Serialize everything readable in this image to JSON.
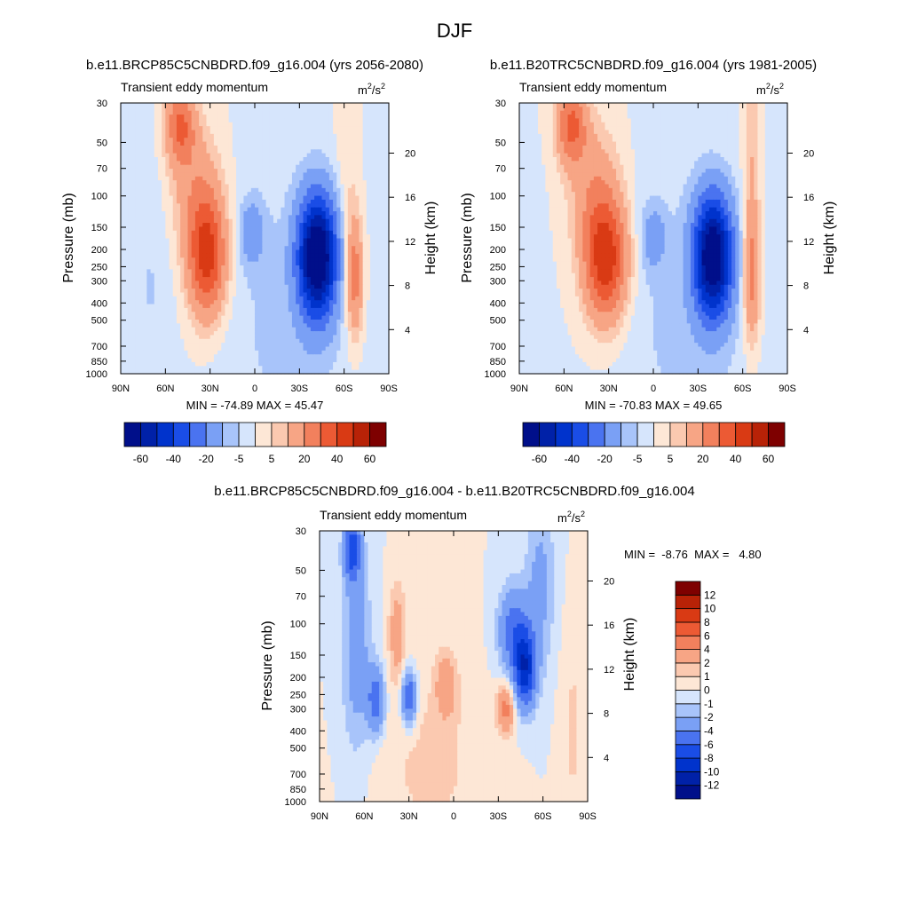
{
  "figure_title": "DJF",
  "chart_data": [
    {
      "type": "heatmap",
      "title": "b.e11.BRCP85C5CNBDRD.f09_g16.004 (yrs 2056-2080)",
      "subtitle_left": "Transient eddy momentum",
      "units": "m²/s²",
      "units_base": "m",
      "units_exp1": "2",
      "units_sep": "/s",
      "units_exp2": "2",
      "ylabel": "Pressure (mb)",
      "ylabel_right": "Height (km)",
      "x_ticks": [
        "90N",
        "60N",
        "30N",
        "0",
        "30S",
        "60S",
        "90S"
      ],
      "y_ticks": [
        "30",
        "50",
        "70",
        "100",
        "150",
        "200",
        "250",
        "300",
        "400",
        "500",
        "700",
        "850",
        "1000"
      ],
      "height_ticks": [
        "20",
        "16",
        "12",
        "8",
        "4"
      ],
      "xlim": [
        90,
        -90
      ],
      "ylim": [
        1000,
        30
      ],
      "stats": "MIN = -74.89  MAX = 45.47",
      "min": -74.89,
      "max": 45.47,
      "colorbar_levels": [
        -70,
        -60,
        -50,
        -40,
        -30,
        -20,
        -10,
        -5,
        0,
        5,
        10,
        20,
        30,
        40,
        50,
        60,
        70
      ],
      "colorbar_tick_labels": [
        "-60",
        "-40",
        "-20",
        "-5",
        "5",
        "20",
        "40",
        "60"
      ],
      "features": [
        {
          "lat": 32,
          "p": 220,
          "amp": 45,
          "wlat": 9,
          "wz": 0.55
        },
        {
          "lat": 50,
          "p": 40,
          "amp": 30,
          "wlat": 7,
          "wz": 0.35
        },
        {
          "lat": 40,
          "p": 90,
          "amp": 14,
          "wlat": 12,
          "wz": 0.6
        },
        {
          "lat": -42,
          "p": 220,
          "amp": -75,
          "wlat": 9,
          "wz": 0.55
        },
        {
          "lat": 2,
          "p": 160,
          "amp": -14,
          "wlat": 6,
          "wz": 0.3
        },
        {
          "lat": -67,
          "p": 280,
          "amp": 28,
          "wlat": 4,
          "wz": 0.55
        },
        {
          "lat": -62,
          "p": 60,
          "amp": 6,
          "wlat": 5,
          "wz": 0.9
        },
        {
          "lat": -20,
          "p": 500,
          "amp": -6,
          "wlat": 35,
          "wz": 1.5
        },
        {
          "lat": 70,
          "p": 300,
          "amp": -5,
          "wlat": 10,
          "wz": 1.2
        }
      ]
    },
    {
      "type": "heatmap",
      "title": "b.e11.B20TRC5CNBDRD.f09_g16.004 (yrs 1981-2005)",
      "subtitle_left": "Transient eddy momentum",
      "units": "m²/s²",
      "units_base": "m",
      "units_exp1": "2",
      "units_sep": "/s",
      "units_exp2": "2",
      "ylabel": "Pressure (mb)",
      "ylabel_right": "Height (km)",
      "x_ticks": [
        "90N",
        "60N",
        "30N",
        "0",
        "30S",
        "60S",
        "90S"
      ],
      "y_ticks": [
        "30",
        "50",
        "70",
        "100",
        "150",
        "200",
        "250",
        "300",
        "400",
        "500",
        "700",
        "850",
        "1000"
      ],
      "height_ticks": [
        "20",
        "16",
        "12",
        "8",
        "4"
      ],
      "xlim": [
        90,
        -90
      ],
      "ylim": [
        1000,
        30
      ],
      "stats": "MIN = -70.83  MAX = 49.65",
      "min": -70.83,
      "max": 49.65,
      "colorbar_levels": [
        -70,
        -60,
        -50,
        -40,
        -30,
        -20,
        -10,
        -5,
        0,
        5,
        10,
        20,
        30,
        40,
        50,
        60,
        70
      ],
      "colorbar_tick_labels": [
        "-60",
        "-40",
        "-20",
        "-5",
        "5",
        "20",
        "40",
        "60"
      ],
      "features": [
        {
          "lat": 32,
          "p": 230,
          "amp": 48,
          "wlat": 10,
          "wz": 0.55
        },
        {
          "lat": 55,
          "p": 40,
          "amp": 32,
          "wlat": 7,
          "wz": 0.35
        },
        {
          "lat": 40,
          "p": 90,
          "amp": 15,
          "wlat": 12,
          "wz": 0.6
        },
        {
          "lat": -40,
          "p": 220,
          "amp": -71,
          "wlat": 9,
          "wz": 0.55
        },
        {
          "lat": 0,
          "p": 170,
          "amp": -12,
          "wlat": 6,
          "wz": 0.3
        },
        {
          "lat": -66,
          "p": 280,
          "amp": 26,
          "wlat": 4,
          "wz": 0.6
        },
        {
          "lat": -66,
          "p": 60,
          "amp": 10,
          "wlat": 4,
          "wz": 0.8
        },
        {
          "lat": -20,
          "p": 500,
          "amp": -6,
          "wlat": 35,
          "wz": 1.5
        },
        {
          "lat": 85,
          "p": 300,
          "amp": -4,
          "wlat": 8,
          "wz": 1.0
        }
      ]
    },
    {
      "type": "heatmap",
      "title": "b.e11.BRCP85C5CNBDRD.f09_g16.004 - b.e11.B20TRC5CNBDRD.f09_g16.004",
      "subtitle_left": "Transient eddy momentum",
      "units": "m²/s²",
      "units_base": "m",
      "units_exp1": "2",
      "units_sep": "/s",
      "units_exp2": "2",
      "ylabel": "Pressure (mb)",
      "ylabel_right": "Height (km)",
      "x_ticks": [
        "90N",
        "60N",
        "30N",
        "0",
        "30S",
        "60S",
        "90S"
      ],
      "y_ticks": [
        "30",
        "50",
        "70",
        "100",
        "150",
        "200",
        "250",
        "300",
        "400",
        "500",
        "700",
        "850",
        "1000"
      ],
      "height_ticks": [
        "20",
        "16",
        "12",
        "8",
        "4"
      ],
      "xlim": [
        90,
        -90
      ],
      "ylim": [
        1000,
        30
      ],
      "stats": "MIN =  -8.76  MAX =   4.80",
      "min": -8.76,
      "max": 4.8,
      "colorbar_levels": [
        -14,
        -12,
        -10,
        -8,
        -6,
        -4,
        -2,
        -1,
        0,
        1,
        2,
        4,
        6,
        8,
        10,
        12,
        14
      ],
      "colorbar_tick_labels": [
        "12",
        "10",
        "8",
        "6",
        "4",
        "2",
        "1",
        "0",
        "-1",
        "-2",
        "-4",
        "-6",
        "-8",
        "-10",
        "-12"
      ],
      "features": [
        {
          "lat": 68,
          "p": 38,
          "amp": -7,
          "wlat": 4,
          "wz": 0.3
        },
        {
          "lat": 65,
          "p": 150,
          "amp": -3,
          "wlat": 7,
          "wz": 0.9
        },
        {
          "lat": 52,
          "p": 270,
          "amp": -5.5,
          "wlat": 4,
          "wz": 0.3
        },
        {
          "lat": 30,
          "p": 260,
          "amp": -6.5,
          "wlat": 3.5,
          "wz": 0.25
        },
        {
          "lat": 38,
          "p": 110,
          "amp": 3,
          "wlat": 4,
          "wz": 0.45
        },
        {
          "lat": 5,
          "p": 220,
          "amp": 3,
          "wlat": 5,
          "wz": 0.3
        },
        {
          "lat": -35,
          "p": 300,
          "amp": 4.8,
          "wlat": 4,
          "wz": 0.22
        },
        {
          "lat": -48,
          "p": 180,
          "amp": -8.8,
          "wlat": 5,
          "wz": 0.35
        },
        {
          "lat": -40,
          "p": 110,
          "amp": -5,
          "wlat": 7,
          "wz": 0.4
        },
        {
          "lat": -58,
          "p": 60,
          "amp": -2.5,
          "wlat": 7,
          "wz": 0.8
        },
        {
          "lat": 15,
          "p": 600,
          "amp": 1.3,
          "wlat": 25,
          "wz": 0.9
        },
        {
          "lat": -80,
          "p": 400,
          "amp": 1.2,
          "wlat": 6,
          "wz": 1.0
        }
      ]
    }
  ],
  "colors": {
    "neg": [
      "#000f8a",
      "#0021a8",
      "#0033cc",
      "#1a4de6",
      "#4a73f0",
      "#7aa0f5",
      "#a8c4fa",
      "#d6e5fc"
    ],
    "pos": [
      "#fde7d6",
      "#fbc9b0",
      "#f7a585",
      "#f2805d",
      "#ec5a34",
      "#d93a14",
      "#b82207",
      "#7e0000"
    ]
  }
}
